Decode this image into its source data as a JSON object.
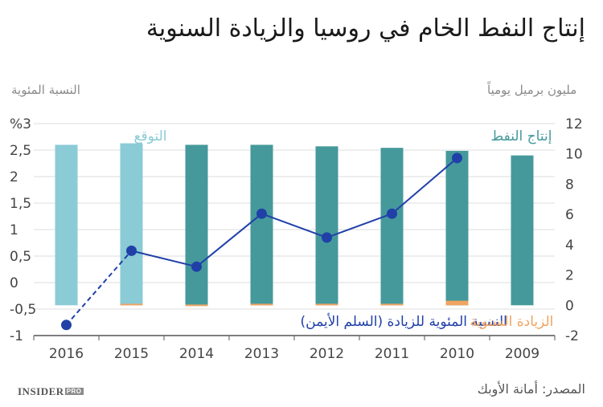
{
  "title": "إنتاج النفط الخام في روسيا والزيادة السنوية",
  "left_axis_title": "النسبة المئوية",
  "right_axis_title": "مليون برميل يومياً",
  "source": "المصدر: أمانة الأوبك",
  "brand": {
    "name": "INSIDER",
    "tag": "PRO"
  },
  "colors": {
    "production": "#45999b",
    "forecast": "#8acbd6",
    "annual_increase": "#f0a462",
    "percent_line": "#2040a8",
    "grid": "#dddddd",
    "axis": "#555555"
  },
  "chart_data": {
    "type": "bar",
    "categories": [
      "2016",
      "2015",
      "2014",
      "2013",
      "2012",
      "2011",
      "2010",
      "2009"
    ],
    "series": [
      {
        "name": "إنتاج النفط",
        "axis": "right",
        "values": [
          10.6,
          10.7,
          10.6,
          10.6,
          10.5,
          10.4,
          10.2,
          9.9
        ],
        "forecast": [
          true,
          true,
          false,
          false,
          false,
          false,
          false,
          false
        ]
      },
      {
        "name": "الزيادة السنوية",
        "axis": "right",
        "values": [
          null,
          0.1,
          0.05,
          0.1,
          0.1,
          0.1,
          0.3,
          null
        ]
      },
      {
        "name": "النسبة المئوية للزيادة (السلم الأيمن)",
        "type": "line",
        "axis": "left",
        "values": [
          -0.8,
          0.6,
          0.3,
          1.3,
          0.85,
          1.3,
          2.35,
          null
        ],
        "dashed_segments": [
          [
            0,
            1
          ]
        ]
      }
    ],
    "annotations": [
      "التوقع"
    ],
    "left_axis": {
      "label": "النسبة المئوية",
      "ylim": [
        -1,
        3
      ],
      "ticks": [
        -1,
        -0.5,
        0,
        0.5,
        1,
        1.5,
        2,
        2.5,
        3
      ],
      "tick_labels": [
        "-1",
        "-0,5",
        "0",
        "0,5",
        "1",
        "1,5",
        "2",
        "2,5",
        "%3"
      ]
    },
    "right_axis": {
      "label": "مليون برميل يومياً",
      "ylim": [
        -2,
        12
      ],
      "ticks": [
        -2,
        0,
        2,
        4,
        6,
        8,
        10,
        12
      ],
      "tick_labels": [
        "-2",
        "0",
        "2",
        "4",
        "6",
        "8",
        "10",
        "12"
      ]
    },
    "grid": true
  }
}
